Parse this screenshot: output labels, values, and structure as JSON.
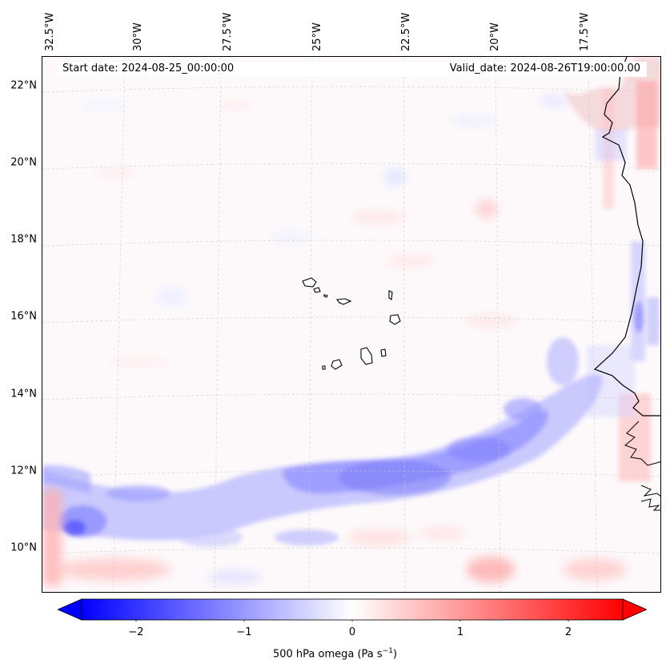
{
  "map": {
    "header": {
      "start_date": "Start date: 2024-08-25_00:00:00",
      "valid_date": "Valid_date: 2024-08-26T19:00:00.00"
    },
    "variable": "500 hPa omega",
    "lon_ticks": [
      "32.5°W",
      "30°W",
      "27.5°W",
      "25°W",
      "22.5°W",
      "20°W",
      "17.5°W"
    ],
    "lat_ticks": [
      "22°N",
      "20°N",
      "18°N",
      "16°N",
      "14°N",
      "12°N",
      "10°N"
    ],
    "region": "Cape Verde Islands and West African coast",
    "colorbar": {
      "label_prefix": "500 hPa omega (Pa s",
      "label_exp": "−1",
      "label_suffix": ")",
      "ticks": [
        "−2",
        "−1",
        "0",
        "1",
        "2"
      ],
      "min": -2.5,
      "max": 2.5,
      "extend": "both",
      "cmap": "bwr",
      "colors": {
        "negative": "#0000ff",
        "zero": "#ffffff",
        "positive": "#ff0000"
      }
    }
  }
}
